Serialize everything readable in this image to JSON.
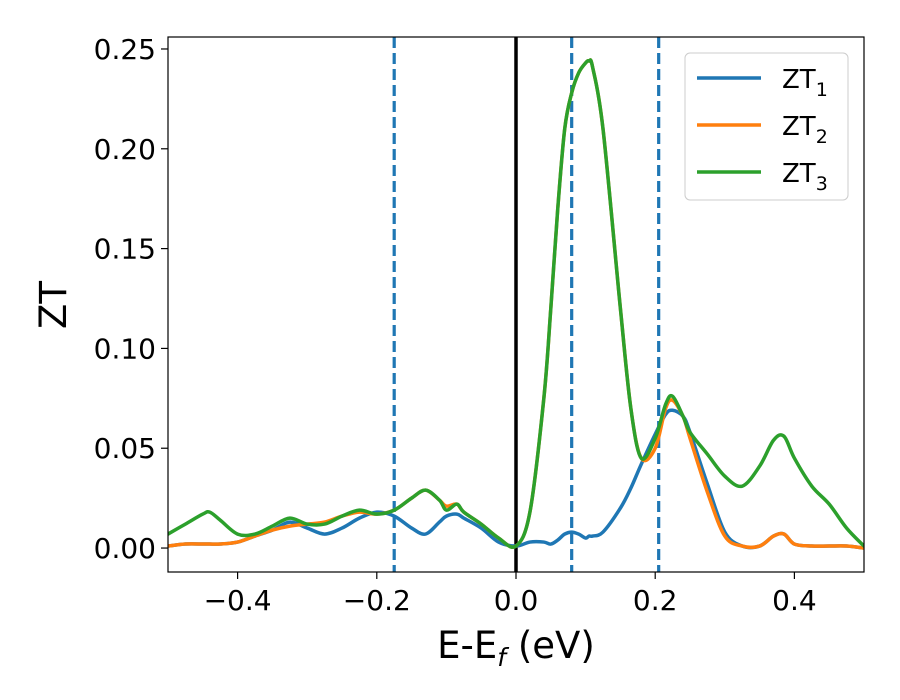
{
  "chart_data": {
    "type": "line",
    "xlabel_main": "E-E",
    "xlabel_sub": "f",
    "xlabel_unit": " (eV)",
    "ylabel": "ZT",
    "xlim": [
      -0.5,
      0.5
    ],
    "ylim": [
      -0.012,
      0.256
    ],
    "x_ticks": [
      -0.4,
      -0.2,
      0.0,
      0.2,
      0.4
    ],
    "x_tick_labels": [
      "−0.4",
      "−0.2",
      "0.0",
      "0.2",
      "0.4"
    ],
    "y_ticks": [
      0.0,
      0.05,
      0.1,
      0.15,
      0.2,
      0.25
    ],
    "y_tick_labels": [
      "0.00",
      "0.05",
      "0.10",
      "0.15",
      "0.20",
      "0.25"
    ],
    "legend_position": "top-right",
    "grid": false,
    "vlines": [
      {
        "x": 0.0,
        "style": "solid",
        "color": "#000000"
      },
      {
        "x": -0.175,
        "style": "dashed",
        "color": "#1f77b4"
      },
      {
        "x": 0.08,
        "style": "dashed",
        "color": "#1f77b4"
      },
      {
        "x": 0.205,
        "style": "dashed",
        "color": "#1f77b4"
      }
    ],
    "x": [
      -0.5,
      -0.475,
      -0.45,
      -0.44,
      -0.425,
      -0.4,
      -0.375,
      -0.35,
      -0.325,
      -0.3,
      -0.275,
      -0.25,
      -0.225,
      -0.2,
      -0.175,
      -0.15,
      -0.13,
      -0.11,
      -0.1,
      -0.085,
      -0.075,
      -0.05,
      -0.025,
      0.0,
      0.02,
      0.04,
      0.05,
      0.06,
      0.07,
      0.08,
      0.09,
      0.1,
      0.105,
      0.11,
      0.125,
      0.15,
      0.165,
      0.18,
      0.2,
      0.215,
      0.225,
      0.24,
      0.25,
      0.275,
      0.3,
      0.325,
      0.35,
      0.37,
      0.385,
      0.4,
      0.425,
      0.45,
      0.475,
      0.5
    ],
    "series": [
      {
        "name": "ZT",
        "name_sub": "1",
        "color": "#1f77b4",
        "values": [
          0.001,
          0.002,
          0.002,
          0.002,
          0.002,
          0.003,
          0.006,
          0.009,
          0.013,
          0.01,
          0.007,
          0.01,
          0.015,
          0.018,
          0.016,
          0.01,
          0.007,
          0.013,
          0.016,
          0.017,
          0.015,
          0.01,
          0.003,
          0.001,
          0.003,
          0.003,
          0.002,
          0.004,
          0.007,
          0.008,
          0.007,
          0.005,
          0.006,
          0.006,
          0.008,
          0.02,
          0.03,
          0.042,
          0.057,
          0.067,
          0.069,
          0.066,
          0.058,
          0.032,
          0.008,
          0.001,
          0.001,
          0.006,
          0.007,
          0.002,
          0.001,
          0.001,
          0.001,
          0.0
        ]
      },
      {
        "name": "ZT",
        "name_sub": "2",
        "color": "#ff7f0e",
        "values": [
          0.001,
          0.002,
          0.002,
          0.002,
          0.002,
          0.003,
          0.006,
          0.009,
          0.011,
          0.012,
          0.013,
          0.016,
          0.018,
          0.017,
          0.019,
          0.025,
          0.029,
          0.024,
          0.021,
          0.022,
          0.018,
          0.012,
          0.005,
          0.001,
          0.018,
          0.075,
          0.12,
          0.17,
          0.21,
          0.228,
          0.238,
          0.243,
          0.244,
          0.241,
          0.21,
          0.12,
          0.07,
          0.045,
          0.05,
          0.07,
          0.074,
          0.066,
          0.055,
          0.028,
          0.006,
          0.001,
          0.001,
          0.006,
          0.007,
          0.002,
          0.001,
          0.001,
          0.001,
          0.0
        ]
      },
      {
        "name": "ZT",
        "name_sub": "3",
        "color": "#2ca02c",
        "values": [
          0.007,
          0.012,
          0.017,
          0.018,
          0.014,
          0.007,
          0.007,
          0.011,
          0.015,
          0.012,
          0.012,
          0.016,
          0.019,
          0.017,
          0.019,
          0.025,
          0.029,
          0.024,
          0.019,
          0.022,
          0.018,
          0.012,
          0.005,
          0.001,
          0.018,
          0.075,
          0.12,
          0.17,
          0.21,
          0.228,
          0.238,
          0.243,
          0.244,
          0.241,
          0.21,
          0.12,
          0.07,
          0.045,
          0.055,
          0.072,
          0.076,
          0.066,
          0.058,
          0.047,
          0.036,
          0.031,
          0.041,
          0.054,
          0.056,
          0.045,
          0.031,
          0.022,
          0.01,
          0.001
        ]
      }
    ]
  }
}
